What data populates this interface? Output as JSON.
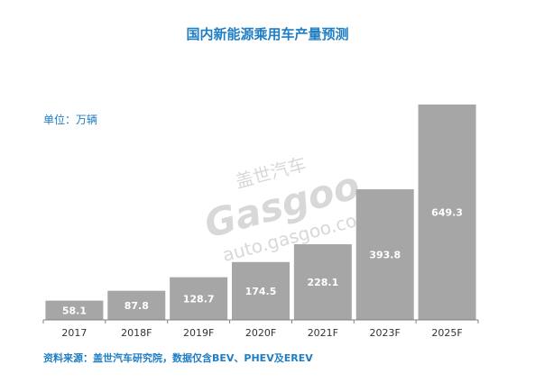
{
  "watermark": {
    "brand_cn": "盖世汽车",
    "brand": "Gasgoo",
    "url": "auto.gasgoo.com"
  },
  "chart_data": {
    "type": "bar",
    "title": "国内新能源乘用车产量预测",
    "unit_label": "单位：万辆",
    "source": "资料来源：盖世汽车研究院，数据仅含BEV、PHEV及EREV",
    "categories": [
      "2017",
      "2018F",
      "2019F",
      "2020F",
      "2021F",
      "2023F",
      "2025F"
    ],
    "values": [
      58.1,
      87.8,
      128.7,
      174.5,
      228.1,
      393.8,
      649.3
    ],
    "data_labels": [
      "58.1",
      "87.8",
      "128.7",
      "174.5",
      "228.1",
      "393.8",
      "649.3"
    ],
    "ylim": [
      0,
      649.3
    ],
    "grid": false,
    "bar_color": "#a6a6a6",
    "axis_color": "#808080",
    "text_color": "#1f7ec4"
  }
}
